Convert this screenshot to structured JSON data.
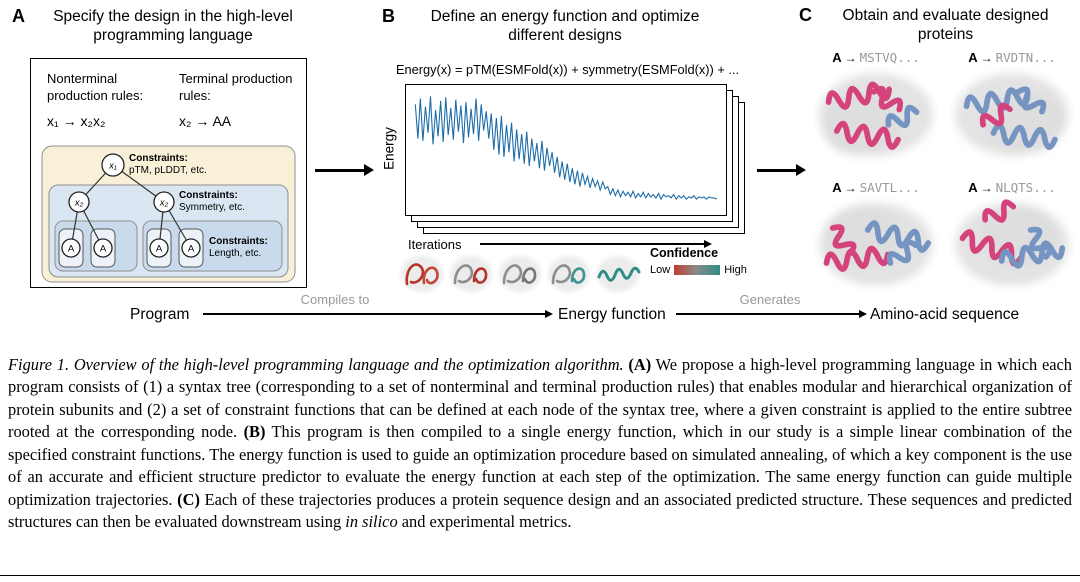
{
  "colors": {
    "chart_line": "#1b6ca8",
    "protein_pink": "#d5437c",
    "protein_blue": "#7594c2",
    "tree_yellow": "#f8f1d8",
    "tree_blue": "#dbe6f3",
    "tree_blue_inner": "#c9daed",
    "gray_label": "#999999",
    "confidence_low": "#c63a2f",
    "confidence_high": "#2f8c86",
    "seq_gray": "#9a9a9a"
  },
  "panel_a": {
    "label": "A",
    "title": "Specify the design in the high-level programming language",
    "nonterminal_header": "Nonterminal production rules:",
    "nonterminal_rule": "x₁ → x₂x₂",
    "terminal_header": "Terminal production rules:",
    "terminal_rule": "x₂ → AA",
    "tree": {
      "root": "x₁",
      "child_left": "x₂",
      "child_right": "x₂",
      "leaf1": "A",
      "leaf2": "A",
      "leaf3": "A",
      "leaf4": "A",
      "constraints_root_title": "Constraints:",
      "constraints_root_body": "pTM, pLDDT, etc.",
      "constraints_mid_title": "Constraints:",
      "constraints_mid_body": "Symmetry, etc.",
      "constraints_leaf_title": "Constraints:",
      "constraints_leaf_body": "Length, etc."
    }
  },
  "panel_b": {
    "label": "B",
    "title": "Define an energy function and optimize different designs",
    "equation": "Energy(x) = pTM(ESMFold(x)) + symmetry(ESMFold(x)) + ...",
    "confidence": {
      "title": "Confidence",
      "low": "Low",
      "high": "High"
    }
  },
  "chart_data": {
    "type": "line",
    "xlabel": "Iterations",
    "ylabel": "Energy",
    "legend": "none",
    "grid": false,
    "tick_labels": "none (qualitative axes)",
    "line_color": "#1b6ca8",
    "ylim": [
      0,
      100
    ],
    "values": [
      90,
      60,
      95,
      58,
      88,
      65,
      97,
      55,
      85,
      62,
      93,
      57,
      96,
      63,
      87,
      59,
      94,
      66,
      89,
      56,
      92,
      61,
      86,
      64,
      95,
      58,
      90,
      67,
      84,
      60,
      82,
      50,
      78,
      46,
      80,
      44,
      72,
      48,
      74,
      40,
      68,
      42,
      64,
      38,
      66,
      36,
      60,
      40,
      56,
      34,
      58,
      32,
      52,
      36,
      48,
      30,
      44,
      26,
      40,
      24,
      38,
      22,
      34,
      20,
      32,
      18,
      30,
      20,
      27,
      17,
      25,
      18,
      23,
      15,
      22,
      16,
      18,
      11,
      16,
      10,
      15,
      9,
      14,
      10,
      13,
      9,
      14,
      8,
      12,
      9,
      13,
      8,
      12,
      9,
      11,
      8,
      12,
      7,
      11,
      9,
      10,
      8,
      11,
      7,
      10,
      8,
      10,
      7,
      9,
      8,
      10,
      7,
      9,
      8,
      9,
      7,
      9,
      8,
      8,
      7
    ]
  },
  "panel_c": {
    "label": "C",
    "title": "Obtain and evaluate designed proteins",
    "cells": [
      {
        "prefix": "A",
        "arrow": "→",
        "sequence": "MSTVQ..."
      },
      {
        "prefix": "A",
        "arrow": "→",
        "sequence": "RVDTN..."
      },
      {
        "prefix": "A",
        "arrow": "→",
        "sequence": "SAVTL..."
      },
      {
        "prefix": "A",
        "arrow": "→",
        "sequence": "NLQTS..."
      }
    ]
  },
  "flow": {
    "program": "Program",
    "compiles_to": "Compiles to",
    "energy_function": "Energy function",
    "generates": "Generates",
    "amino_acid": "Amino-acid sequence"
  },
  "caption": {
    "lead_italic": "Figure 1. Overview of the high-level programming language and the optimization algorithm.",
    "a_label": "(A)",
    "a_text": "We propose a high-level programming language in which each program consists of (1) a syntax tree (corresponding to a set of nonterminal and terminal production rules) that enables modular and hierarchical organization of protein subunits and (2) a set of constraint functions that can be defined at each node of the syntax tree, where a given constraint is applied to the entire subtree rooted at the corresponding node.",
    "b_label": "(B)",
    "b_text": "This program is then compiled to a single energy function, which in our study is a simple linear combination of the specified constraint functions. The energy function is used to guide an optimization procedure based on simulated annealing, of which a key component is the use of an accurate and efficient structure predictor to evaluate the energy function at each step of the optimization. The same energy function can guide multiple optimization trajectories.",
    "c_label": "(C)",
    "c_text": "Each of these trajectories produces a protein sequence design and an associated predicted structure. These sequences and predicted structures can then be evaluated downstream using",
    "in_silico": "in silico",
    "tail": "and experimental metrics."
  }
}
